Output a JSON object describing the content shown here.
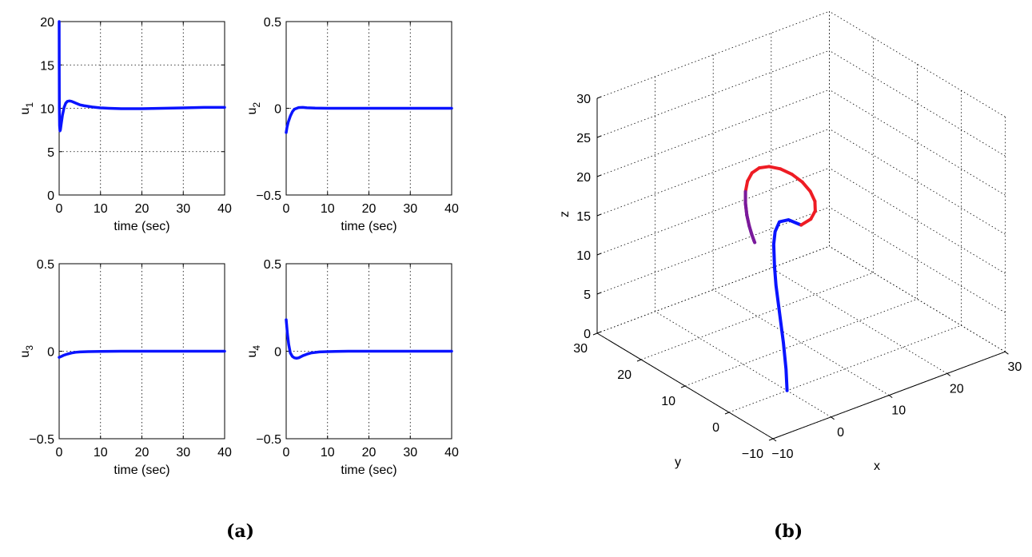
{
  "figure": {
    "caption_a": "(a)",
    "caption_b": "(b)"
  },
  "colors": {
    "line": "#0a14ff",
    "red": "#ee1c24",
    "purple": "#7a1a9c",
    "grid": "#000000"
  },
  "chart_data": [
    {
      "id": "u1",
      "type": "line",
      "ylabel_base": "u",
      "ylabel_sub": "1",
      "xlabel": "time (sec)",
      "xlim": [
        0,
        40
      ],
      "ylim": [
        0,
        20
      ],
      "xticks": [
        0,
        10,
        20,
        30,
        40
      ],
      "yticks": [
        0,
        5,
        10,
        15,
        20
      ],
      "yticklabels": [
        "0",
        "5",
        "10",
        "15",
        "20"
      ],
      "grid": true,
      "series": [
        {
          "x": [
            0,
            0.02,
            0.05,
            0.1,
            0.2,
            0.3,
            0.5,
            0.8,
            1.2,
            1.6,
            2.0,
            2.5,
            3.0,
            3.5,
            4.0,
            5.0,
            6.0,
            8.0,
            10.0,
            12.0,
            15.0,
            20.0,
            25.0,
            30.0,
            35.0,
            40.0
          ],
          "y": [
            20.0,
            15.0,
            10.0,
            8.0,
            7.4,
            7.5,
            8.2,
            9.2,
            10.1,
            10.6,
            10.8,
            10.85,
            10.8,
            10.7,
            10.6,
            10.4,
            10.3,
            10.15,
            10.05,
            10.0,
            9.95,
            9.95,
            10.0,
            10.05,
            10.1,
            10.1
          ]
        }
      ]
    },
    {
      "id": "u2",
      "type": "line",
      "ylabel_base": "u",
      "ylabel_sub": "2",
      "xlabel": "time (sec)",
      "xlim": [
        0,
        40
      ],
      "ylim": [
        -0.5,
        0.5
      ],
      "xticks": [
        0,
        10,
        20,
        30,
        40
      ],
      "yticks": [
        -0.5,
        0,
        0.5
      ],
      "yticklabels": [
        "−0.5",
        "0",
        "0.5"
      ],
      "grid": true,
      "series": [
        {
          "x": [
            0,
            0.2,
            0.5,
            1.0,
            1.5,
            2.0,
            3.0,
            4.0,
            5.0,
            7.0,
            10.0,
            20.0,
            30.0,
            40.0
          ],
          "y": [
            -0.14,
            -0.11,
            -0.08,
            -0.045,
            -0.02,
            -0.005,
            0.004,
            0.005,
            0.003,
            0.001,
            0.0,
            0.0,
            0.0,
            0.0
          ]
        }
      ]
    },
    {
      "id": "u3",
      "type": "line",
      "ylabel_base": "u",
      "ylabel_sub": "3",
      "xlabel": "time (sec)",
      "xlim": [
        0,
        40
      ],
      "ylim": [
        -0.5,
        0.5
      ],
      "xticks": [
        0,
        10,
        20,
        30,
        40
      ],
      "yticks": [
        -0.5,
        0,
        0.5
      ],
      "yticklabels": [
        "−0.5",
        "0",
        "0.5"
      ],
      "grid": true,
      "series": [
        {
          "x": [
            0,
            0.5,
            1.0,
            2.0,
            3.0,
            4.0,
            5.0,
            7.0,
            10.0,
            15.0,
            20.0,
            30.0,
            40.0
          ],
          "y": [
            -0.035,
            -0.03,
            -0.024,
            -0.016,
            -0.01,
            -0.006,
            -0.004,
            -0.002,
            -0.001,
            0.0,
            0.0,
            0.0,
            0.0
          ]
        }
      ]
    },
    {
      "id": "u4",
      "type": "line",
      "ylabel_base": "u",
      "ylabel_sub": "4",
      "xlabel": "time (sec)",
      "xlim": [
        0,
        40
      ],
      "ylim": [
        -0.5,
        0.5
      ],
      "xticks": [
        0,
        10,
        20,
        30,
        40
      ],
      "yticks": [
        -0.5,
        0,
        0.5
      ],
      "yticklabels": [
        "−0.5",
        "0",
        "0.5"
      ],
      "grid": true,
      "series": [
        {
          "x": [
            0,
            0.3,
            0.6,
            1.0,
            1.5,
            2.0,
            2.5,
            3.0,
            3.5,
            4.0,
            5.0,
            6.0,
            8.0,
            10.0,
            12.0,
            15.0,
            20.0,
            30.0,
            40.0
          ],
          "y": [
            0.18,
            0.1,
            0.04,
            -0.01,
            -0.03,
            -0.038,
            -0.04,
            -0.038,
            -0.032,
            -0.026,
            -0.017,
            -0.01,
            -0.004,
            -0.002,
            -0.001,
            0.0,
            0.0,
            0.0,
            0.0
          ]
        }
      ]
    },
    {
      "id": "trajectory3d",
      "type": "line",
      "xlabel": "x",
      "ylabel": "y",
      "zlabel": "z",
      "xlim": [
        -10,
        30
      ],
      "ylim": [
        -10,
        30
      ],
      "zlim": [
        0,
        30
      ],
      "xticks": [
        -10,
        0,
        10,
        20,
        30
      ],
      "yticks": [
        -10,
        0,
        10,
        20,
        30
      ],
      "zticks": [
        0,
        5,
        10,
        15,
        20,
        25,
        30
      ],
      "tick_labels_x": [
        "−10",
        "0",
        "10",
        "20",
        "30"
      ],
      "tick_labels_y": [
        "−10",
        "0",
        "10",
        "20",
        "30"
      ],
      "tick_labels_z": [
        "0",
        "5",
        "10",
        "15",
        "20",
        "25",
        "30"
      ],
      "grid": true,
      "series": [
        {
          "color": "blue",
          "x": [
            0.0,
            0.2,
            0.5,
            1.0,
            1.5,
            2.0,
            3.0,
            4.0,
            5.5,
            7.5,
            10.0
          ],
          "y": [
            0.0,
            0.5,
            1.5,
            3.0,
            4.5,
            5.5,
            7.0,
            8.0,
            9.0,
            9.6,
            10.0
          ],
          "z": [
            0.0,
            2.5,
            5.5,
            8.5,
            11.5,
            13.5,
            15.5,
            16.5,
            17.0,
            16.5,
            15.0
          ]
        },
        {
          "color": "red-to-purple",
          "x": [
            10.0,
            12.07,
            14.0,
            15.66,
            16.93,
            17.73,
            18.0,
            17.73,
            16.93,
            15.66,
            14.0,
            12.07,
            10.0,
            7.93,
            6.0,
            4.34,
            3.07,
            2.27,
            2.0,
            2.27,
            3.07,
            4.34,
            6.0,
            7.93,
            10.0
          ],
          "y": [
            10.0,
            10.54,
            12.07,
            14.34,
            17.07,
            19.93,
            22.66,
            24.93,
            26.46,
            27.0,
            26.46,
            24.93,
            22.66,
            19.93,
            17.07,
            14.34,
            12.07,
            10.54,
            10.0,
            10.54,
            12.07,
            14.34,
            17.07,
            19.93,
            22.66
          ],
          "z": [
            15.0,
            15.0,
            15.0,
            15.0,
            15.0,
            15.0,
            15.0,
            15.0,
            15.0,
            15.0,
            15.0,
            15.0,
            15.0,
            15.0,
            15.0,
            15.0,
            15.0,
            15.0,
            15.0,
            15.0,
            15.0,
            15.0,
            15.0,
            15.0,
            15.0
          ]
        }
      ]
    }
  ]
}
